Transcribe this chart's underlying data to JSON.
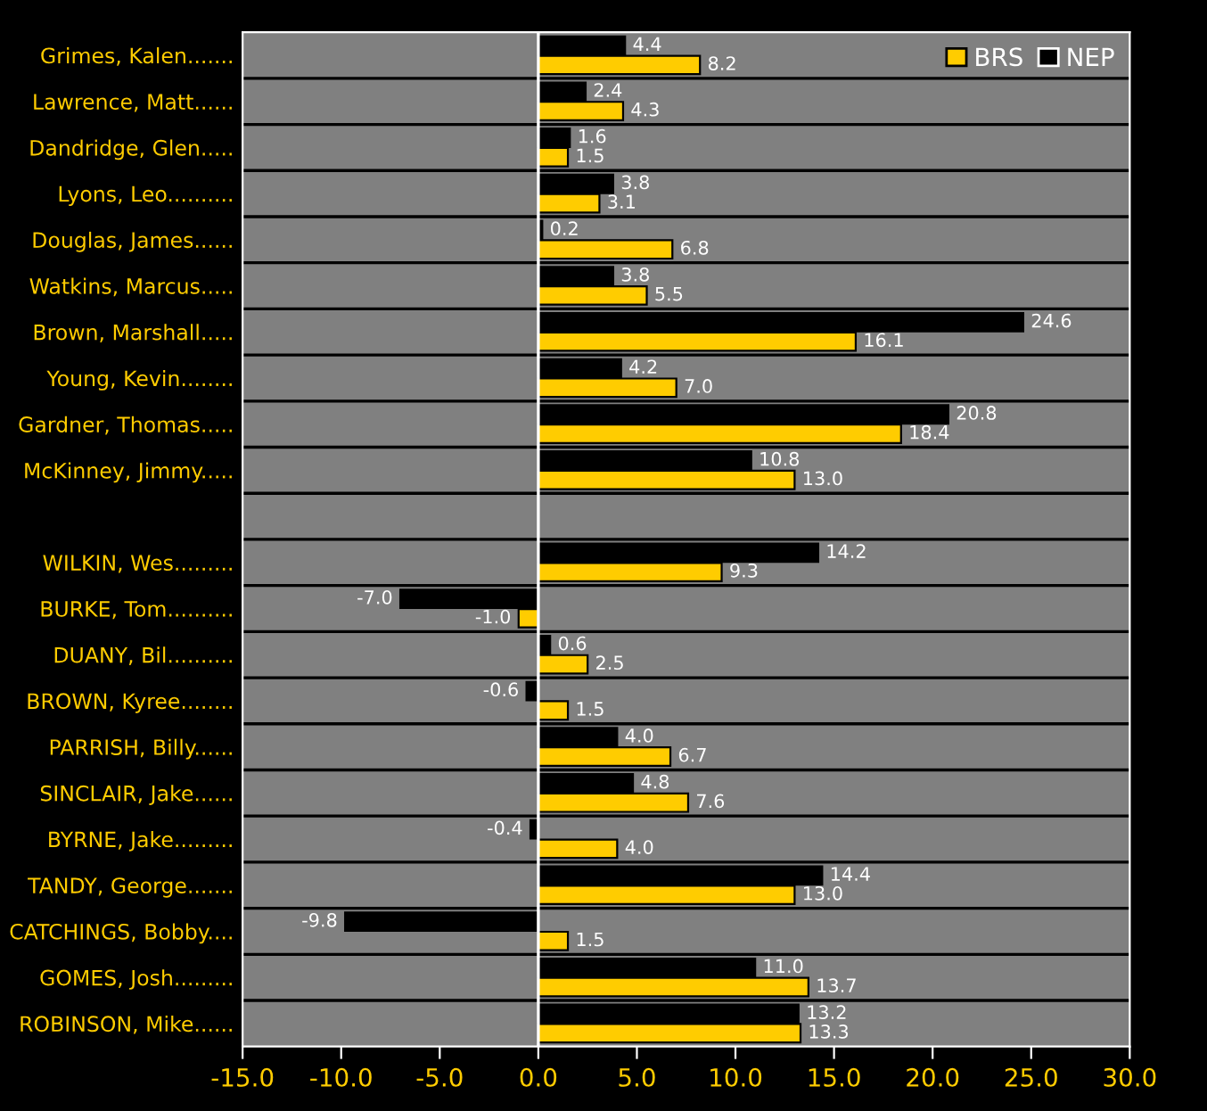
{
  "chart_data": {
    "type": "bar",
    "orientation": "horizontal",
    "categories": [
      "Grimes, Kalen.......",
      "Lawrence, Matt......",
      "Dandridge, Glen.....",
      "Lyons, Leo..........",
      "Douglas, James......",
      "Watkins, Marcus.....",
      "Brown, Marshall.....",
      "Young, Kevin........",
      "Gardner, Thomas.....",
      "McKinney, Jimmy.....",
      null,
      "WILKIN, Wes.........",
      "BURKE, Tom..........",
      "DUANY, Bil..........",
      "BROWN, Kyree........",
      "PARRISH, Billy......",
      "SINCLAIR, Jake......",
      "BYRNE, Jake.........",
      "TANDY, George.......",
      "CATCHINGS, Bobby....",
      "GOMES, Josh.........",
      "ROBINSON, Mike......"
    ],
    "series": [
      {
        "name": "BRS",
        "color": "#ffcc00",
        "values": [
          8.2,
          4.3,
          1.5,
          3.1,
          6.8,
          5.5,
          16.1,
          7.0,
          18.4,
          13.0,
          null,
          9.3,
          -1.0,
          2.5,
          1.5,
          6.7,
          7.6,
          4.0,
          13.0,
          1.5,
          13.7,
          13.3
        ],
        "value_labels": [
          "8.2",
          "4.3",
          "1.5",
          "3.1",
          "6.8",
          "5.5",
          "16.1",
          "7.0",
          "18.4",
          "13.0",
          null,
          "9.3",
          "-1.0",
          "2.5",
          "1.5",
          "6.7",
          "7.6",
          "4.0",
          "13.0",
          "1.5",
          "13.7",
          "13.3"
        ]
      },
      {
        "name": "NEP",
        "color": "#000000",
        "values": [
          4.4,
          2.4,
          1.6,
          3.8,
          0.2,
          3.8,
          24.6,
          4.2,
          20.8,
          10.8,
          null,
          14.2,
          -7.0,
          0.6,
          -0.6,
          4.0,
          4.8,
          -0.4,
          14.4,
          -9.8,
          11.0,
          13.2
        ],
        "value_labels": [
          "4.4",
          "2.4",
          "1.6",
          "3.8",
          "0.2",
          "3.8",
          "24.6",
          "4.2",
          "20.8",
          "10.8",
          null,
          "14.2",
          "-7.0",
          "0.6",
          "-0.6",
          "4.0",
          "4.8",
          "-0.4",
          "14.4",
          "-9.8",
          "11.0",
          "13.2"
        ]
      }
    ],
    "xlim": [
      -15,
      30
    ],
    "xticks": [
      {
        "value": -15,
        "label": "-15.0"
      },
      {
        "value": -10,
        "label": "-10.0"
      },
      {
        "value": -5,
        "label": "-5.0"
      },
      {
        "value": 0,
        "label": "0.0"
      },
      {
        "value": 5,
        "label": "5.0"
      },
      {
        "value": 10,
        "label": "10.0"
      },
      {
        "value": 15,
        "label": "15.0"
      },
      {
        "value": 20,
        "label": "20.0"
      },
      {
        "value": 25,
        "label": "25.0"
      },
      {
        "value": 30,
        "label": "30.0"
      }
    ],
    "grid": "y",
    "legend": "top right"
  }
}
